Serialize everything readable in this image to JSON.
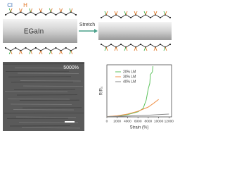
{
  "schematic": {
    "atom_labels": [
      "Cl",
      "H"
    ],
    "metal_label": "EGaIn",
    "arrow_label": "Stretch"
  },
  "micrograph": {
    "scale_label": "5000%"
  },
  "chart_data": {
    "type": "line",
    "x_label": "Strain (%)",
    "y_label": "R/R₀",
    "xlim": [
      0,
      12500
    ],
    "xticks": [
      0,
      2000,
      4000,
      6000,
      8000,
      10000,
      12000
    ],
    "ylim": [
      0,
      185
    ],
    "legend": "upper-left",
    "series": [
      {
        "name": "20% LM",
        "color": "#5cc25c",
        "x": [
          0,
          2000,
          4000,
          6000,
          7000,
          7600,
          8000,
          8300,
          8400,
          8800,
          8900
        ],
        "values": [
          1,
          3,
          8,
          18,
          30,
          60,
          100,
          120,
          150,
          160,
          180
        ]
      },
      {
        "name": "30% LM",
        "color": "#f0924a",
        "x": [
          0,
          2000,
          4000,
          6000,
          8000,
          9000,
          10000
        ],
        "values": [
          1,
          4,
          10,
          20,
          35,
          48,
          62
        ]
      },
      {
        "name": "40% LM",
        "color": "#8a8a8a",
        "x": [
          0,
          4000,
          8000,
          10000,
          12000
        ],
        "values": [
          1,
          3,
          6,
          8,
          10
        ]
      }
    ]
  }
}
